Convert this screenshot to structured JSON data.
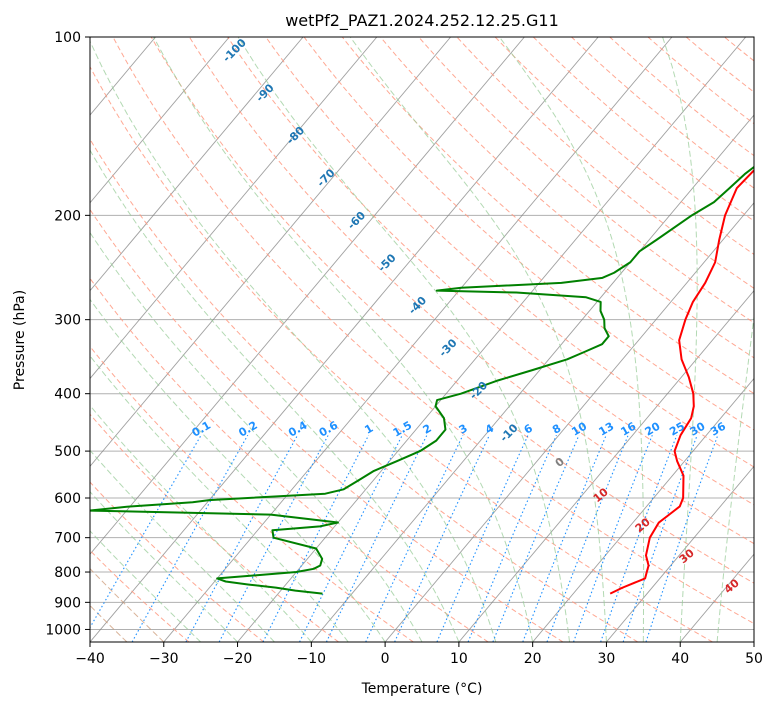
{
  "chart_data": {
    "type": "line",
    "title": "wetPf2_PAZ1.2024.252.12.25.G11",
    "xlabel": "Temperature (°C)",
    "ylabel": "Pressure (hPa)",
    "xlim": [
      -40,
      50
    ],
    "ylim_pressure": [
      1050,
      100
    ],
    "y_scale": "log",
    "x_ticks": [
      -40,
      -30,
      -20,
      -10,
      0,
      10,
      20,
      30,
      40,
      50
    ],
    "y_ticks": [
      100,
      200,
      300,
      400,
      500,
      600,
      700,
      800,
      900,
      1000
    ],
    "grid": true,
    "skew": "skew-T log-P",
    "dry_adiabat_labels": [
      -100,
      -90,
      -80,
      -70,
      -60,
      -50,
      -40,
      -30,
      -20,
      -10
    ],
    "mixing_ratio_labels": [
      "0.1",
      "0.2",
      "0.4",
      "0.6",
      "1",
      "1.5",
      "2",
      "3",
      "4",
      "6",
      "8",
      "10",
      "13",
      "16",
      "20",
      "25",
      "30",
      "36"
    ],
    "moist_adiabat_labels": [
      "0",
      "10",
      "20",
      "30",
      "40"
    ],
    "colors": {
      "temperature": "#ff0000",
      "dewpoint": "#008000",
      "dry_adiabat": "#ff9980",
      "moist_adiabat": "#99cc99",
      "mixing_ratio": "#1e90ff",
      "isotherm": "#808080",
      "label_dry": "#1f77b4",
      "label_mix": "#1e90ff",
      "label_moist": "#d62728"
    },
    "series": [
      {
        "role": "temperature",
        "points": [
          [
            870,
            25
          ],
          [
            850,
            26
          ],
          [
            820,
            28
          ],
          [
            800,
            27.5
          ],
          [
            780,
            27
          ],
          [
            750,
            25.5
          ],
          [
            700,
            24
          ],
          [
            660,
            23.5
          ],
          [
            640,
            24
          ],
          [
            620,
            24.5
          ],
          [
            600,
            24
          ],
          [
            550,
            21.5
          ],
          [
            520,
            19
          ],
          [
            500,
            17.5
          ],
          [
            470,
            16.5
          ],
          [
            440,
            16
          ],
          [
            420,
            15
          ],
          [
            400,
            13.5
          ],
          [
            375,
            11
          ],
          [
            350,
            8
          ],
          [
            325,
            5.5
          ],
          [
            300,
            4
          ],
          [
            280,
            3
          ],
          [
            260,
            2.5
          ],
          [
            240,
            1.5
          ],
          [
            220,
            -0.5
          ],
          [
            200,
            -2.5
          ],
          [
            180,
            -4
          ],
          [
            160,
            -3.5
          ],
          [
            145,
            -2
          ],
          [
            130,
            -1.5
          ],
          [
            120,
            -2
          ],
          [
            110,
            -3
          ],
          [
            100,
            -3.5
          ]
        ]
      },
      {
        "role": "dewpoint",
        "points": [
          [
            870,
            -14
          ],
          [
            860,
            -18
          ],
          [
            850,
            -21
          ],
          [
            840,
            -25
          ],
          [
            830,
            -28.5
          ],
          [
            820,
            -30
          ],
          [
            810,
            -25
          ],
          [
            800,
            -20
          ],
          [
            790,
            -18
          ],
          [
            780,
            -17.5
          ],
          [
            760,
            -18
          ],
          [
            730,
            -20
          ],
          [
            700,
            -27
          ],
          [
            680,
            -28
          ],
          [
            670,
            -22
          ],
          [
            660,
            -20
          ],
          [
            640,
            -30
          ],
          [
            630,
            -55
          ],
          [
            620,
            -50
          ],
          [
            610,
            -42
          ],
          [
            605,
            -40
          ],
          [
            600,
            -35
          ],
          [
            590,
            -25
          ],
          [
            580,
            -23
          ],
          [
            560,
            -22
          ],
          [
            540,
            -21
          ],
          [
            520,
            -19
          ],
          [
            500,
            -17
          ],
          [
            480,
            -16
          ],
          [
            460,
            -16
          ],
          [
            440,
            -17.5
          ],
          [
            420,
            -20
          ],
          [
            410,
            -20.5
          ],
          [
            400,
            -18
          ],
          [
            380,
            -14.5
          ],
          [
            365,
            -11
          ],
          [
            350,
            -7.5
          ],
          [
            340,
            -6
          ],
          [
            330,
            -4.5
          ],
          [
            320,
            -4.5
          ],
          [
            310,
            -6
          ],
          [
            300,
            -7
          ],
          [
            290,
            -8.5
          ],
          [
            280,
            -9.5
          ],
          [
            275,
            -12
          ],
          [
            270,
            -22
          ],
          [
            268,
            -33
          ],
          [
            265,
            -30
          ],
          [
            260,
            -17
          ],
          [
            255,
            -12
          ],
          [
            250,
            -11
          ],
          [
            240,
            -10
          ],
          [
            230,
            -10
          ],
          [
            220,
            -9
          ],
          [
            200,
            -7
          ],
          [
            190,
            -5.5
          ],
          [
            180,
            -5
          ],
          [
            170,
            -4.5
          ],
          [
            160,
            -3.5
          ],
          [
            150,
            -1
          ],
          [
            140,
            0
          ],
          [
            130,
            1.5
          ],
          [
            120,
            2
          ],
          [
            110,
            2.5
          ],
          [
            100,
            2
          ]
        ]
      }
    ]
  }
}
